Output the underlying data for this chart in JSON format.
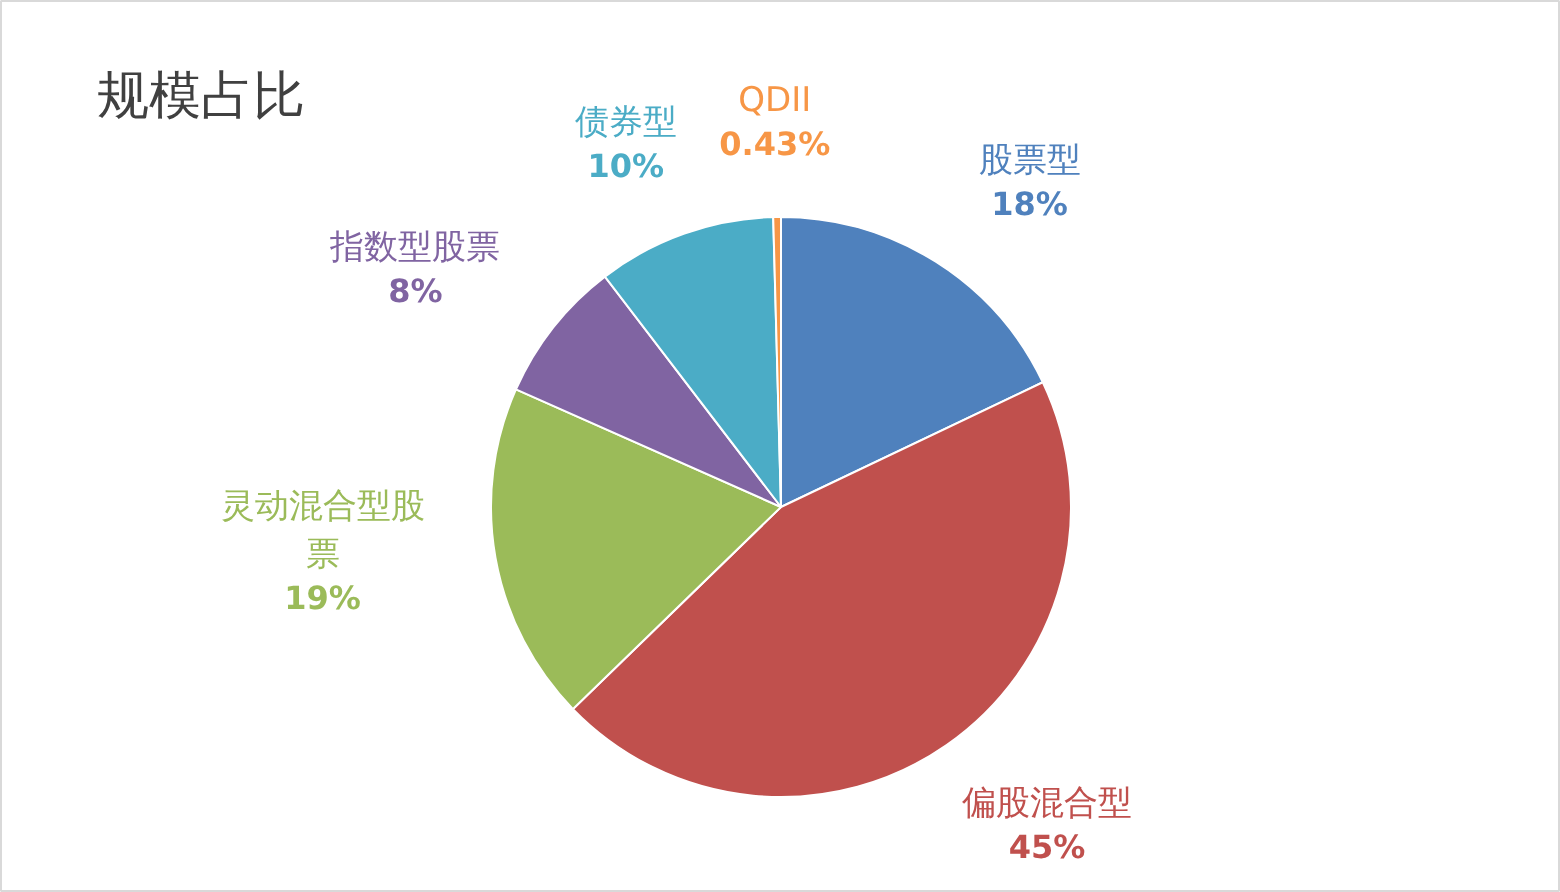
{
  "chart_data": {
    "type": "pie",
    "title": "规模占比",
    "categories": [
      "股票型",
      "偏股混合型",
      "灵动混合型股票",
      "指数型股票",
      "债券型",
      "QDII"
    ],
    "values": [
      18,
      45,
      19,
      8,
      10,
      0.43
    ],
    "colors": [
      "#4f81bd",
      "#c0504d",
      "#9bbb59",
      "#8064a2",
      "#4bacc6",
      "#f79646"
    ],
    "value_labels": [
      "18%",
      "45%",
      "19%",
      "8%",
      "10%",
      "0.43%"
    ]
  }
}
